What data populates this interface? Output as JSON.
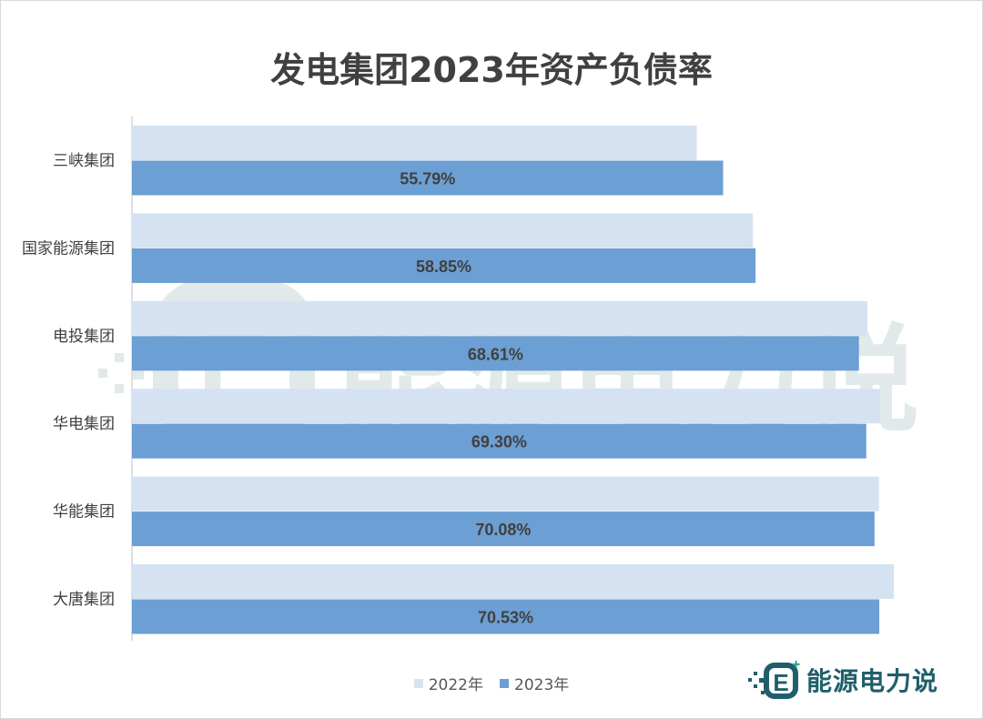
{
  "chart_data": {
    "type": "bar",
    "orientation": "horizontal",
    "title": "发电集团2023年资产负债率",
    "categories": [
      "三峡集团",
      "国家能源集团",
      "电投集团",
      "华电集团",
      "华能集团",
      "大唐集团"
    ],
    "series": [
      {
        "name": "2022年",
        "values": [
          53.3,
          58.6,
          69.4,
          70.6,
          70.5,
          71.9
        ],
        "color": "#d5e2f1"
      },
      {
        "name": "2023年",
        "values": [
          55.79,
          58.85,
          68.61,
          69.3,
          70.08,
          70.53
        ],
        "color": "#6c9fd3"
      }
    ],
    "data_labels": [
      "55.79%",
      "58.85%",
      "68.61%",
      "69.30%",
      "70.08%",
      "70.53%"
    ],
    "xlim": [
      0,
      72.5
    ],
    "grid": false,
    "legend_position": "bottom"
  },
  "watermark": {
    "text": "能源电力说",
    "logo_letter": "E"
  },
  "brand": {
    "text": "能源电力说",
    "logo_letter": "E",
    "color": "#1f5f6b",
    "accent": "#18a87b"
  }
}
